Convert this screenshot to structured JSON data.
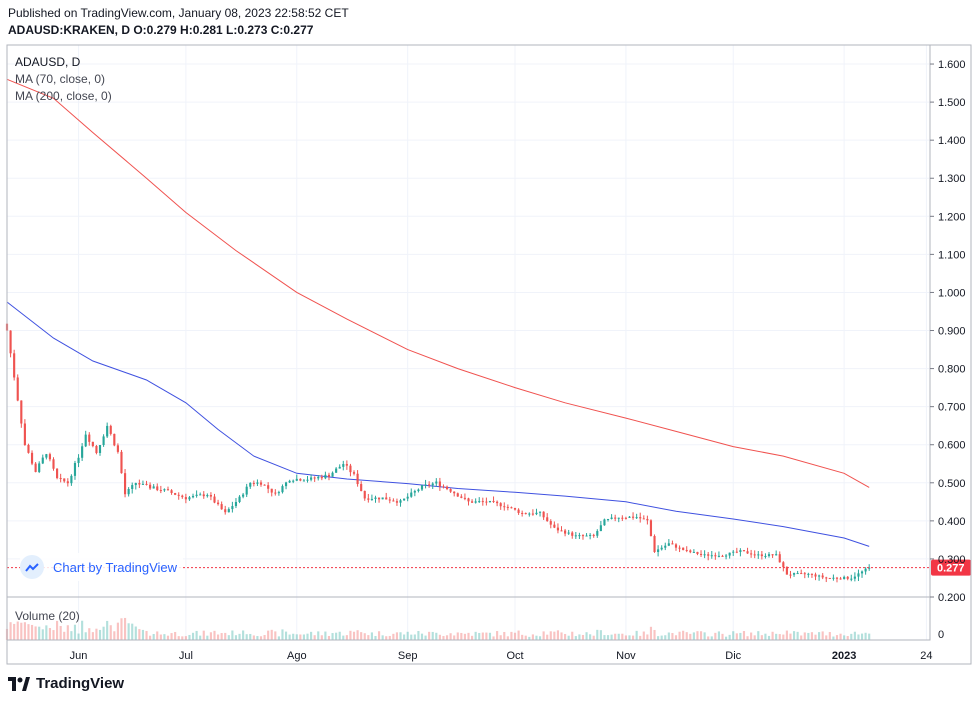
{
  "header": {
    "published": "Published on TradingView.com, January 08, 2023 22:58:52 CET",
    "ohlc": "ADAUSD:KRAKEN, D O:0.279 H:0.281 L:0.273 C:0.277"
  },
  "legend": {
    "symbol": "ADAUSD, D",
    "ma70": "MA (70, close, 0)",
    "ma200": "MA (200, close, 0)",
    "volume": "Volume (20)"
  },
  "watermark": {
    "text": "Chart by TradingView"
  },
  "brand": {
    "text": "TradingView"
  },
  "colors": {
    "up": "#26a69a",
    "down": "#ef5350",
    "ma70": "#3f51e0",
    "ma200": "#f0524f",
    "last_price": "#f23645",
    "grid": "#f0f3fa"
  },
  "chart_data": {
    "type": "candlestick",
    "symbol": "ADAUSD:KRAKEN",
    "interval": "D",
    "ylim": [
      0.2,
      1.65
    ],
    "y_ticks": [
      "0.200",
      "0.300",
      "0.400",
      "0.500",
      "0.600",
      "0.700",
      "0.800",
      "0.900",
      "1.000",
      "1.100",
      "1.200",
      "1.300",
      "1.400",
      "1.500",
      "1.600"
    ],
    "x_ticks": [
      "Jun",
      "Jul",
      "Ago",
      "Sep",
      "Oct",
      "Nov",
      "Dic",
      "2023",
      "24"
    ],
    "x_range": [
      "2022-05-12",
      "2023-01-25"
    ],
    "last_price": 0.277,
    "last_price_label": "0.277",
    "volume_axis_label": "0",
    "anchors": [
      [
        "2022-05-12",
        0.9
      ],
      [
        "2022-05-14",
        0.78
      ],
      [
        "2022-05-17",
        0.6
      ],
      [
        "2022-05-20",
        0.53
      ],
      [
        "2022-05-23",
        0.58
      ],
      [
        "2022-05-26",
        0.51
      ],
      [
        "2022-05-29",
        0.5
      ],
      [
        "2022-06-01",
        0.57
      ],
      [
        "2022-06-03",
        0.63
      ],
      [
        "2022-06-06",
        0.58
      ],
      [
        "2022-06-09",
        0.65
      ],
      [
        "2022-06-12",
        0.58
      ],
      [
        "2022-06-14",
        0.47
      ],
      [
        "2022-06-17",
        0.5
      ],
      [
        "2022-06-20",
        0.49
      ],
      [
        "2022-06-25",
        0.48
      ],
      [
        "2022-07-01",
        0.46
      ],
      [
        "2022-07-07",
        0.47
      ],
      [
        "2022-07-12",
        0.42
      ],
      [
        "2022-07-16",
        0.46
      ],
      [
        "2022-07-19",
        0.5
      ],
      [
        "2022-07-22",
        0.5
      ],
      [
        "2022-07-26",
        0.47
      ],
      [
        "2022-07-30",
        0.51
      ],
      [
        "2022-08-05",
        0.51
      ],
      [
        "2022-08-10",
        0.52
      ],
      [
        "2022-08-14",
        0.55
      ],
      [
        "2022-08-17",
        0.52
      ],
      [
        "2022-08-20",
        0.46
      ],
      [
        "2022-08-25",
        0.46
      ],
      [
        "2022-08-30",
        0.45
      ],
      [
        "2022-09-05",
        0.49
      ],
      [
        "2022-09-09",
        0.5
      ],
      [
        "2022-09-13",
        0.48
      ],
      [
        "2022-09-18",
        0.45
      ],
      [
        "2022-09-23",
        0.45
      ],
      [
        "2022-09-28",
        0.44
      ],
      [
        "2022-10-03",
        0.42
      ],
      [
        "2022-10-08",
        0.42
      ],
      [
        "2022-10-12",
        0.38
      ],
      [
        "2022-10-18",
        0.36
      ],
      [
        "2022-10-23",
        0.36
      ],
      [
        "2022-10-26",
        0.4
      ],
      [
        "2022-10-30",
        0.41
      ],
      [
        "2022-11-04",
        0.41
      ],
      [
        "2022-11-07",
        0.4
      ],
      [
        "2022-11-09",
        0.32
      ],
      [
        "2022-11-13",
        0.34
      ],
      [
        "2022-11-18",
        0.32
      ],
      [
        "2022-11-23",
        0.31
      ],
      [
        "2022-11-28",
        0.31
      ],
      [
        "2022-12-03",
        0.32
      ],
      [
        "2022-12-08",
        0.31
      ],
      [
        "2022-12-13",
        0.31
      ],
      [
        "2022-12-16",
        0.26
      ],
      [
        "2022-12-22",
        0.26
      ],
      [
        "2022-12-27",
        0.25
      ],
      [
        "2023-01-01",
        0.25
      ],
      [
        "2023-01-03",
        0.25
      ],
      [
        "2023-01-08",
        0.277
      ]
    ],
    "ma70": [
      [
        "2022-05-12",
        0.975
      ],
      [
        "2022-05-25",
        0.88
      ],
      [
        "2022-06-05",
        0.82
      ],
      [
        "2022-06-20",
        0.77
      ],
      [
        "2022-07-01",
        0.71
      ],
      [
        "2022-07-10",
        0.64
      ],
      [
        "2022-07-20",
        0.57
      ],
      [
        "2022-08-01",
        0.525
      ],
      [
        "2022-08-15",
        0.51
      ],
      [
        "2022-09-01",
        0.498
      ],
      [
        "2022-09-15",
        0.485
      ],
      [
        "2022-10-01",
        0.475
      ],
      [
        "2022-10-15",
        0.465
      ],
      [
        "2022-11-01",
        0.45
      ],
      [
        "2022-11-15",
        0.425
      ],
      [
        "2022-12-01",
        0.405
      ],
      [
        "2022-12-15",
        0.385
      ],
      [
        "2023-01-01",
        0.355
      ],
      [
        "2023-01-08",
        0.333
      ]
    ],
    "ma200": [
      [
        "2022-05-12",
        1.56
      ],
      [
        "2022-05-25",
        1.51
      ],
      [
        "2022-06-05",
        1.42
      ],
      [
        "2022-06-20",
        1.3
      ],
      [
        "2022-07-01",
        1.21
      ],
      [
        "2022-07-15",
        1.11
      ],
      [
        "2022-08-01",
        1.0
      ],
      [
        "2022-08-15",
        0.93
      ],
      [
        "2022-09-01",
        0.85
      ],
      [
        "2022-09-15",
        0.8
      ],
      [
        "2022-10-01",
        0.75
      ],
      [
        "2022-10-15",
        0.71
      ],
      [
        "2022-11-01",
        0.67
      ],
      [
        "2022-11-15",
        0.635
      ],
      [
        "2022-12-01",
        0.595
      ],
      [
        "2022-12-15",
        0.57
      ],
      [
        "2023-01-01",
        0.525
      ],
      [
        "2023-01-08",
        0.488
      ]
    ]
  }
}
